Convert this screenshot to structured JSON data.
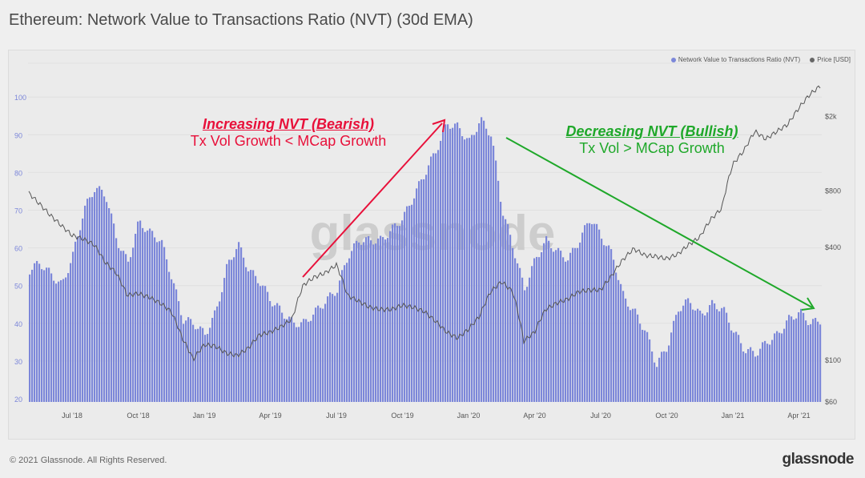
{
  "title": "Ethereum: Network Value to Transactions Ratio (NVT) (30d EMA)",
  "footer": {
    "copyright": "© 2021 Glassnode. All Rights Reserved.",
    "logo": "glassnode"
  },
  "watermark": "glassnode",
  "colors": {
    "nvt": "#7c87d9",
    "price": "#555555",
    "bearish": "#e8103a",
    "bullish": "#1fa82a"
  },
  "annotations": {
    "bearish_title": "Increasing NVT (Bearish)",
    "bearish_sub": "Tx Vol Growth < MCap Growth",
    "bullish_title": "Decreasing NVT (Bullish)",
    "bullish_sub": "Tx Vol > MCap Growth"
  },
  "chart_data": {
    "type": "bar+line",
    "title": "Ethereum: Network Value to Transactions Ratio (NVT) (30d EMA)",
    "legend": [
      "Network Value to Transactions Ratio (NVT)",
      "Price [USD]"
    ],
    "legend_position": "top-right",
    "x_unit": "months since May 2018",
    "x_range": [
      0,
      36
    ],
    "x_ticks": [
      {
        "t": 2,
        "label": "Jul '18"
      },
      {
        "t": 5,
        "label": "Oct '18"
      },
      {
        "t": 8,
        "label": "Jan '19"
      },
      {
        "t": 11,
        "label": "Apr '19"
      },
      {
        "t": 14,
        "label": "Jul '19"
      },
      {
        "t": 17,
        "label": "Oct '19"
      },
      {
        "t": 20,
        "label": "Jan '20"
      },
      {
        "t": 23,
        "label": "Apr '20"
      },
      {
        "t": 26,
        "label": "Jul '20"
      },
      {
        "t": 29,
        "label": "Oct '20"
      },
      {
        "t": 32,
        "label": "Jan '21"
      },
      {
        "t": 35,
        "label": "Apr '21"
      }
    ],
    "y_left": {
      "range": [
        20,
        108
      ],
      "ticks": [
        20,
        30,
        40,
        50,
        60,
        70,
        80,
        90,
        100
      ]
    },
    "y_right": {
      "scale": "log",
      "range": [
        55,
        3400
      ],
      "ticks": [
        {
          "v": 60,
          "label": "$60"
        },
        {
          "v": 100,
          "label": "$100"
        },
        {
          "v": 400,
          "label": "$400"
        },
        {
          "v": 800,
          "label": "$800"
        },
        {
          "v": 2000,
          "label": "$2k"
        }
      ]
    },
    "step": 0.5,
    "nvt": [
      54,
      56,
      53,
      50,
      58,
      70,
      76,
      74,
      62,
      56,
      67,
      64,
      62,
      52,
      41,
      40,
      37,
      43,
      55,
      61,
      54,
      51,
      46,
      43,
      40,
      40,
      43,
      46,
      49,
      58,
      62,
      62,
      62,
      65,
      68,
      74,
      80,
      86,
      93,
      92,
      88,
      94,
      90,
      70,
      60,
      49,
      57,
      62,
      59,
      57,
      62,
      68,
      63,
      58,
      47,
      43,
      38,
      29,
      34,
      44,
      46,
      42,
      45,
      44,
      38,
      33,
      32,
      35,
      37,
      41,
      43,
      40,
      41
    ],
    "price": [
      780,
      680,
      590,
      520,
      460,
      440,
      410,
      330,
      290,
      220,
      225,
      215,
      200,
      180,
      130,
      100,
      120,
      118,
      108,
      105,
      115,
      135,
      140,
      150,
      165,
      250,
      275,
      290,
      320,
      220,
      205,
      190,
      185,
      185,
      195,
      190,
      180,
      160,
      140,
      130,
      145,
      170,
      230,
      260,
      230,
      125,
      140,
      185,
      200,
      210,
      230,
      235,
      235,
      280,
      340,
      390,
      360,
      355,
      345,
      365,
      410,
      450,
      560,
      640,
      1100,
      1300,
      1650,
      1500,
      1650,
      1800,
      2200,
      2600,
      2900
    ],
    "grid": true
  }
}
